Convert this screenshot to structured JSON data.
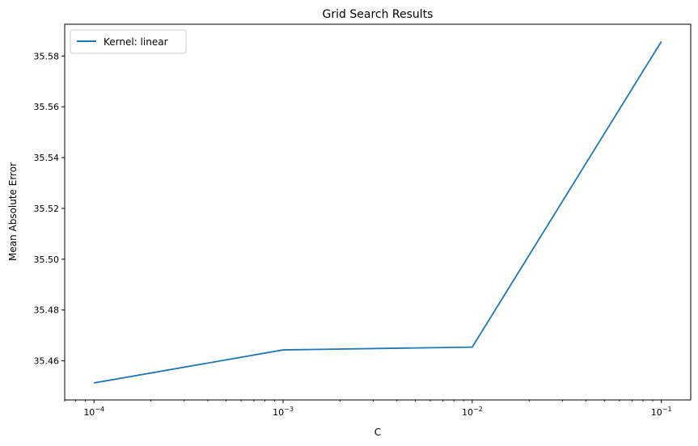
{
  "chart_data": {
    "type": "line",
    "title": "Grid Search Results",
    "xlabel": "C",
    "ylabel": "Mean Absolute Error",
    "xscale": "log",
    "xlim": [
      7e-05,
      0.143
    ],
    "ylim": [
      35.4446,
      35.5925
    ],
    "x_ticks": [
      {
        "value": 0.0001,
        "base": "10",
        "exp": "−4"
      },
      {
        "value": 0.001,
        "base": "10",
        "exp": "−3"
      },
      {
        "value": 0.01,
        "base": "10",
        "exp": "−2"
      },
      {
        "value": 0.1,
        "base": "10",
        "exp": "−1"
      }
    ],
    "y_ticks": [
      "35.46",
      "35.48",
      "35.50",
      "35.52",
      "35.54",
      "35.56",
      "35.58"
    ],
    "series": [
      {
        "name": "Kernel: linear",
        "color": "#1f77b4",
        "x": [
          0.0001,
          0.001,
          0.01,
          0.1
        ],
        "y": [
          35.4513,
          35.4643,
          35.4654,
          35.5857
        ]
      }
    ],
    "legend_position": "top-left",
    "grid": false
  }
}
